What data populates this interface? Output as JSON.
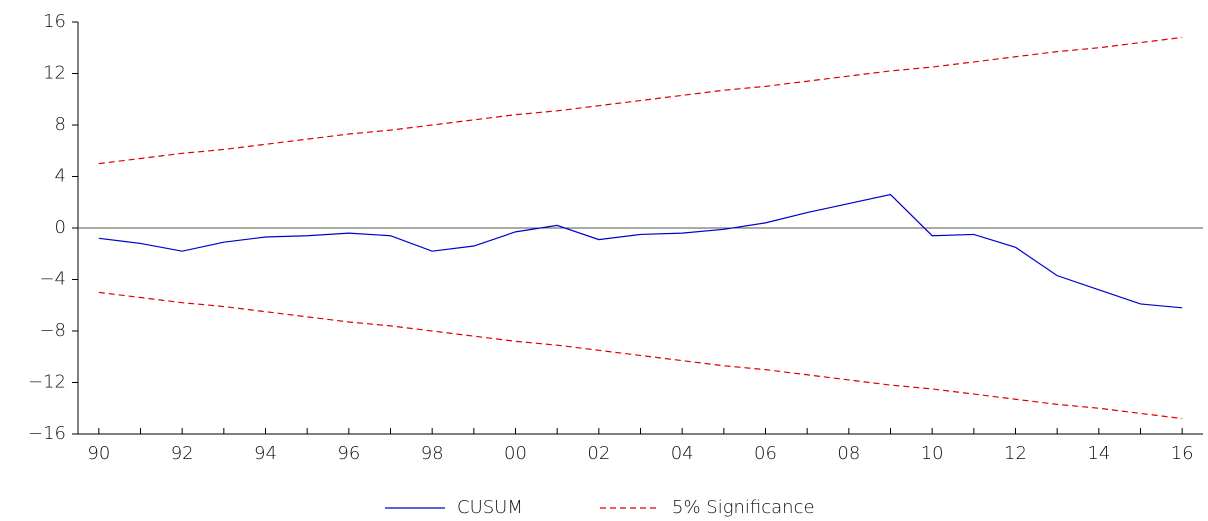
{
  "chart_data": {
    "type": "line",
    "categories": [
      "90",
      null,
      "92",
      null,
      "94",
      null,
      "96",
      null,
      "98",
      null,
      "00",
      null,
      "02",
      null,
      "04",
      null,
      "06",
      null,
      "08",
      null,
      "10",
      null,
      "12",
      null,
      "14",
      null,
      "16"
    ],
    "series": [
      {
        "name": "CUSUM",
        "color": "#0000cc",
        "dashed": false,
        "values": [
          -0.8,
          -1.2,
          -1.8,
          -1.1,
          -0.7,
          -0.6,
          -0.4,
          -0.6,
          -1.8,
          -1.4,
          -0.3,
          0.2,
          -0.9,
          -0.5,
          -0.4,
          -0.1,
          0.4,
          1.2,
          1.9,
          2.6,
          -0.6,
          -0.5,
          -1.5,
          -3.7,
          -4.8,
          -5.9,
          -6.2
        ]
      },
      {
        "name": "5% Significance",
        "color": "#e00000",
        "dashed": true,
        "values": [
          5.0,
          5.4,
          5.8,
          6.1,
          6.5,
          6.9,
          7.3,
          7.6,
          8.0,
          8.4,
          8.8,
          9.1,
          9.5,
          9.9,
          10.3,
          10.7,
          11.0,
          11.4,
          11.8,
          12.2,
          12.5,
          12.9,
          13.3,
          13.7,
          14.0,
          14.4,
          14.8
        ],
        "lower_values": [
          -5.0,
          -5.4,
          -5.8,
          -6.1,
          -6.5,
          -6.9,
          -7.3,
          -7.6,
          -8.0,
          -8.4,
          -8.8,
          -9.1,
          -9.5,
          -9.9,
          -10.3,
          -10.7,
          -11.0,
          -11.4,
          -11.8,
          -12.2,
          -12.5,
          -12.9,
          -13.3,
          -13.7,
          -14.0,
          -14.4,
          -14.8
        ]
      }
    ],
    "ylim": [
      -16,
      16
    ],
    "yticks": [
      {
        "value": -16,
        "label": "−16"
      },
      {
        "value": -12,
        "label": "−12"
      },
      {
        "value": -8,
        "label": "−8"
      },
      {
        "value": -4,
        "label": "−4"
      },
      0,
      4,
      8,
      12,
      16
    ],
    "grid": false,
    "legend": "bottom"
  }
}
